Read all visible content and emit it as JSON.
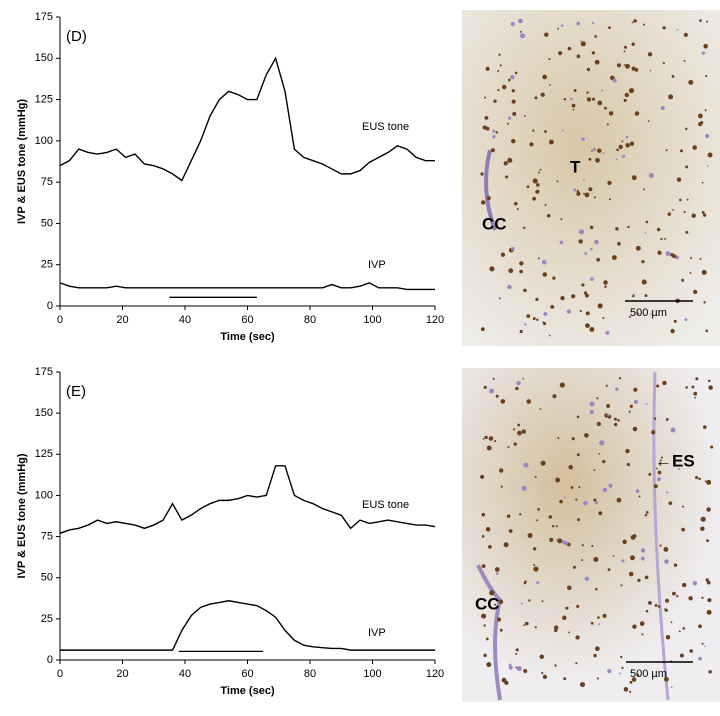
{
  "chart_data": [
    {
      "type": "line",
      "panel": "(D)",
      "xlabel": "Time (sec)",
      "ylabel": "IVP & EUS tone (mmHg)",
      "x": [
        0,
        3,
        6,
        9,
        12,
        15,
        18,
        21,
        24,
        27,
        30,
        33,
        36,
        39,
        42,
        45,
        48,
        51,
        54,
        57,
        60,
        63,
        66,
        69,
        72,
        75,
        78,
        81,
        84,
        87,
        90,
        93,
        96,
        99,
        102,
        105,
        108,
        111,
        114,
        117,
        120
      ],
      "series": [
        {
          "name": "EUS tone",
          "color": "#000000",
          "values": [
            85,
            88,
            95,
            93,
            92,
            93,
            95,
            90,
            92,
            86,
            85,
            83,
            80,
            76,
            88,
            100,
            115,
            125,
            130,
            128,
            125,
            125,
            140,
            150,
            130,
            95,
            90,
            88,
            86,
            83,
            80,
            80,
            82,
            87,
            90,
            93,
            97,
            95,
            90,
            88,
            88
          ]
        },
        {
          "name": "IVP",
          "color": "#000000",
          "values": [
            14,
            12,
            11,
            11,
            11,
            11,
            12,
            11,
            11,
            11,
            11,
            11,
            11,
            11,
            11,
            11,
            11,
            11,
            11,
            11,
            11,
            11,
            11,
            11,
            11,
            11,
            11,
            11,
            11,
            13,
            11,
            11,
            12,
            14,
            11,
            11,
            11,
            10,
            10,
            10,
            10
          ]
        }
      ],
      "stimulus": [
        35,
        63
      ],
      "xlim": [
        0,
        120
      ],
      "xticks": [
        0,
        20,
        40,
        60,
        80,
        100,
        120
      ],
      "ylim": [
        0,
        175
      ],
      "yticks": [
        0,
        25,
        50,
        75,
        100,
        125,
        150,
        175
      ]
    },
    {
      "type": "line",
      "panel": "(E)",
      "xlabel": "Time (sec)",
      "ylabel": "IVP & EUS tone (mmHg)",
      "x": [
        0,
        3,
        6,
        9,
        12,
        15,
        18,
        21,
        24,
        27,
        30,
        33,
        36,
        39,
        42,
        45,
        48,
        51,
        54,
        57,
        60,
        63,
        66,
        69,
        72,
        75,
        78,
        81,
        84,
        87,
        90,
        93,
        96,
        99,
        102,
        105,
        108,
        111,
        114,
        117,
        120
      ],
      "series": [
        {
          "name": "EUS tone",
          "color": "#000000",
          "values": [
            77,
            79,
            80,
            82,
            85,
            83,
            84,
            83,
            82,
            80,
            82,
            85,
            95,
            85,
            88,
            92,
            95,
            97,
            97,
            98,
            100,
            99,
            100,
            118,
            118,
            100,
            97,
            95,
            92,
            90,
            88,
            80,
            85,
            83,
            84,
            85,
            84,
            83,
            82,
            82,
            81
          ]
        },
        {
          "name": "IVP",
          "color": "#000000",
          "values": [
            6,
            6,
            6,
            6,
            6,
            6,
            6,
            6,
            6,
            6,
            6,
            6,
            6,
            18,
            27,
            32,
            34,
            35,
            36,
            35,
            34,
            33,
            30,
            26,
            18,
            12,
            9,
            8,
            7.5,
            7,
            7,
            6,
            6,
            6,
            6,
            6,
            6,
            6,
            6,
            6,
            6
          ]
        }
      ],
      "stimulus": [
        38,
        65
      ],
      "xlim": [
        0,
        120
      ],
      "xticks": [
        0,
        20,
        40,
        60,
        80,
        100,
        120
      ],
      "ylim": [
        0,
        175
      ],
      "yticks": [
        0,
        25,
        50,
        75,
        100,
        125,
        150,
        175
      ]
    }
  ],
  "images": [
    {
      "labels": [
        "T",
        "CC"
      ],
      "scale_bar": "500 µm"
    },
    {
      "labels": [
        "←ES",
        "CC"
      ],
      "scale_bar": "500 µm"
    }
  ]
}
